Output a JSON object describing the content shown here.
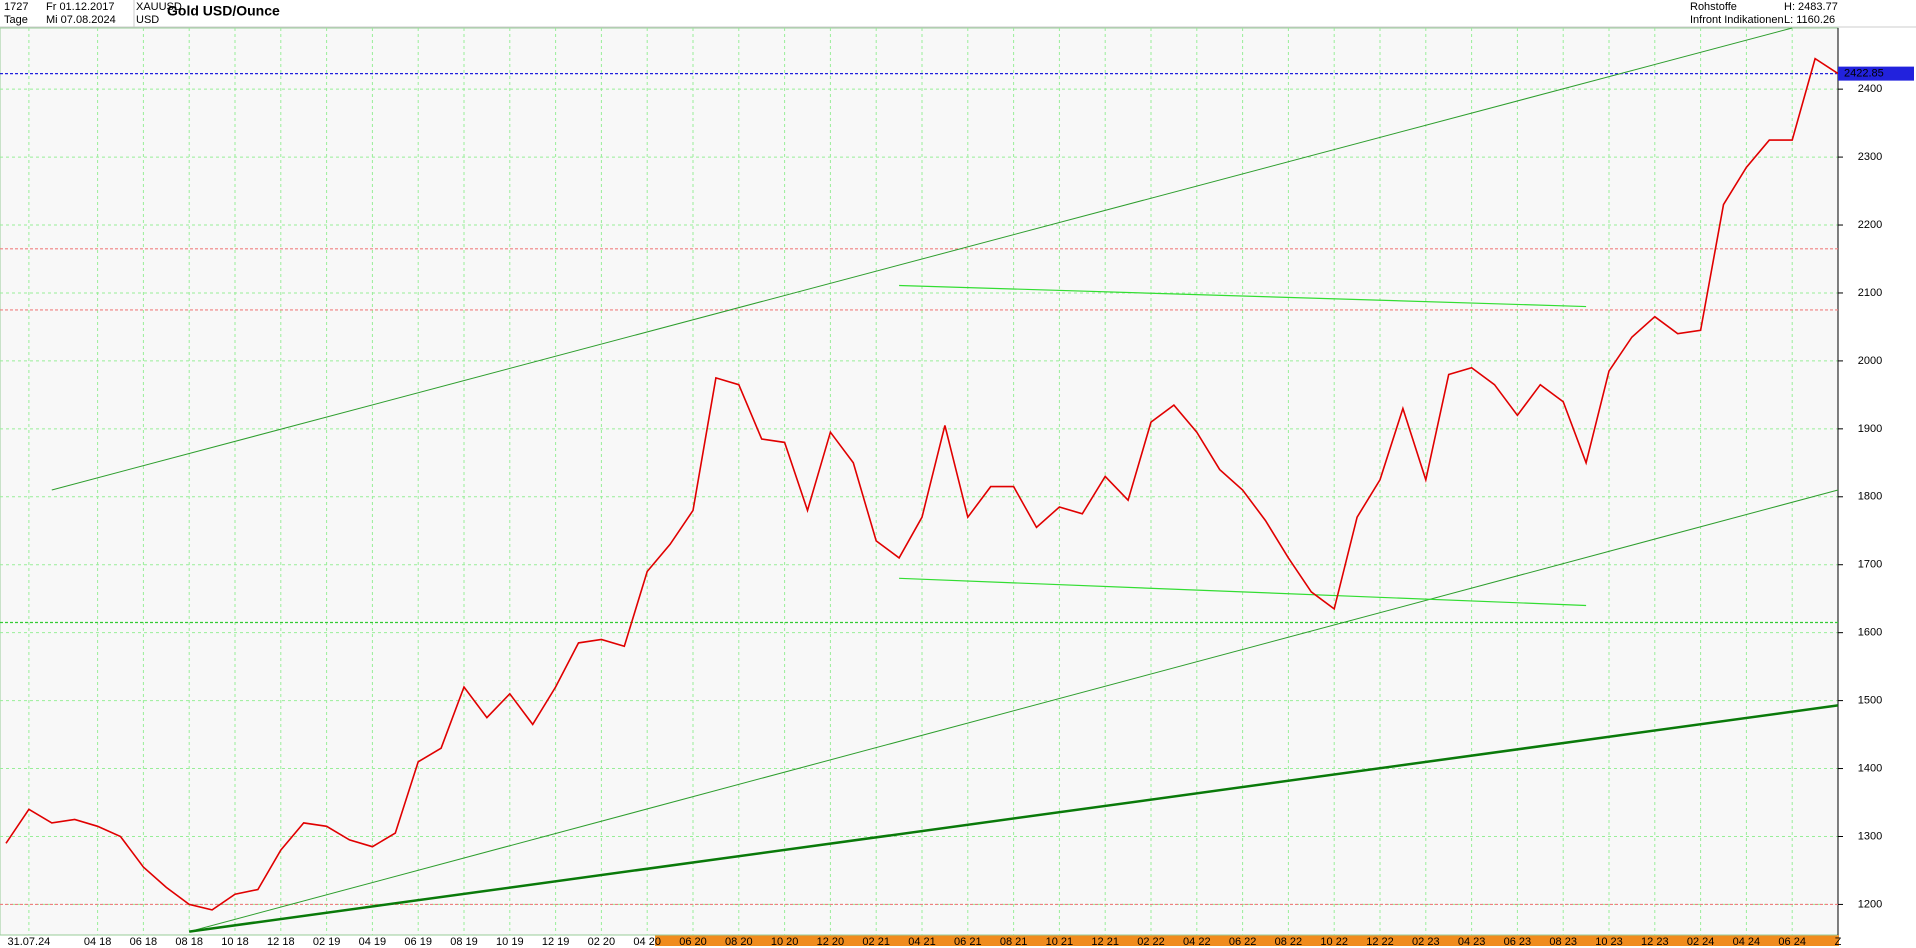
{
  "chart_data": {
    "type": "line",
    "title": "Gold USD/Ounce",
    "count": "1727",
    "period": "Tage",
    "date_from": "Fr 01.12.2017",
    "date_to": "Mi 07.08.2024",
    "symbol": "XAUUSD",
    "currency": "USD",
    "category": "Rohstoffe",
    "source": "Infront Indikationen",
    "high_label": "H: 2483.77",
    "low_label": "L: 1160.26",
    "last_price": 2422.85,
    "x": [
      "2017-12",
      "2018-01",
      "2018-02",
      "2018-03",
      "2018-04",
      "2018-05",
      "2018-06",
      "2018-07",
      "2018-08",
      "2018-09",
      "2018-10",
      "2018-11",
      "2018-12",
      "2019-01",
      "2019-02",
      "2019-03",
      "2019-04",
      "2019-05",
      "2019-06",
      "2019-07",
      "2019-08",
      "2019-09",
      "2019-10",
      "2019-11",
      "2019-12",
      "2020-01",
      "2020-02",
      "2020-03",
      "2020-04",
      "2020-05",
      "2020-06",
      "2020-07",
      "2020-08",
      "2020-09",
      "2020-10",
      "2020-11",
      "2020-12",
      "2021-01",
      "2021-02",
      "2021-03",
      "2021-04",
      "2021-05",
      "2021-06",
      "2021-07",
      "2021-08",
      "2021-09",
      "2021-10",
      "2021-11",
      "2021-12",
      "2022-01",
      "2022-02",
      "2022-03",
      "2022-04",
      "2022-05",
      "2022-06",
      "2022-07",
      "2022-08",
      "2022-09",
      "2022-10",
      "2022-11",
      "2022-12",
      "2023-01",
      "2023-02",
      "2023-03",
      "2023-04",
      "2023-05",
      "2023-06",
      "2023-07",
      "2023-08",
      "2023-09",
      "2023-10",
      "2023-11",
      "2023-12",
      "2024-01",
      "2024-02",
      "2024-03",
      "2024-04",
      "2024-05",
      "2024-06",
      "2024-07",
      "2024-08"
    ],
    "series": [
      {
        "color": "#e00000",
        "values": [
          1290,
          1340,
          1320,
          1325,
          1315,
          1300,
          1255,
          1225,
          1200,
          1192,
          1215,
          1222,
          1280,
          1320,
          1315,
          1295,
          1285,
          1305,
          1410,
          1430,
          1520,
          1475,
          1510,
          1465,
          1520,
          1585,
          1590,
          1580,
          1690,
          1730,
          1780,
          1975,
          1965,
          1885,
          1880,
          1780,
          1895,
          1850,
          1735,
          1710,
          1770,
          1905,
          1770,
          1815,
          1815,
          1755,
          1785,
          1775,
          1830,
          1795,
          1910,
          1935,
          1895,
          1840,
          1810,
          1765,
          1710,
          1660,
          1635,
          1770,
          1825,
          1930,
          1825,
          1980,
          1990,
          1965,
          1920,
          1965,
          1940,
          1850,
          1985,
          2035,
          2065,
          2040,
          2045,
          2230,
          2285,
          2325,
          2325,
          2445,
          2422.85
        ]
      }
    ],
    "ylim": [
      1155,
      2490
    ],
    "yticks": [
      1200,
      1300,
      1400,
      1500,
      1600,
      1700,
      1800,
      1900,
      2000,
      2100,
      2200,
      2300,
      2400
    ],
    "xticks": [
      {
        "value": "2018-01",
        "label": "31.07.24"
      },
      {
        "value": "2018-04",
        "label": "04 18"
      },
      {
        "value": "2018-06",
        "label": "06 18"
      },
      {
        "value": "2018-08",
        "label": "08 18"
      },
      {
        "value": "2018-10",
        "label": "10 18"
      },
      {
        "value": "2018-12",
        "label": "12 18"
      },
      {
        "value": "2019-02",
        "label": "02 19"
      },
      {
        "value": "2019-04",
        "label": "04 19"
      },
      {
        "value": "2019-06",
        "label": "06 19"
      },
      {
        "value": "2019-08",
        "label": "08 19"
      },
      {
        "value": "2019-10",
        "label": "10 19"
      },
      {
        "value": "2019-12",
        "label": "12 19"
      },
      {
        "value": "2020-02",
        "label": "02 20"
      },
      {
        "value": "2020-04",
        "label": "04 20"
      },
      {
        "value": "2020-06",
        "label": "06 20"
      },
      {
        "value": "2020-08",
        "label": "08 20"
      },
      {
        "value": "2020-10",
        "label": "10 20"
      },
      {
        "value": "2020-12",
        "label": "12 20"
      },
      {
        "value": "2021-02",
        "label": "02 21"
      },
      {
        "value": "2021-04",
        "label": "04 21"
      },
      {
        "value": "2021-06",
        "label": "06 21"
      },
      {
        "value": "2021-08",
        "label": "08 21"
      },
      {
        "value": "2021-10",
        "label": "10 21"
      },
      {
        "value": "2021-12",
        "label": "12 21"
      },
      {
        "value": "2022-02",
        "label": "02 22"
      },
      {
        "value": "2022-04",
        "label": "04 22"
      },
      {
        "value": "2022-06",
        "label": "06 22"
      },
      {
        "value": "2022-08",
        "label": "08 22"
      },
      {
        "value": "2022-10",
        "label": "10 22"
      },
      {
        "value": "2022-12",
        "label": "12 22"
      },
      {
        "value": "2023-02",
        "label": "02 23"
      },
      {
        "value": "2023-04",
        "label": "04 23"
      },
      {
        "value": "2023-06",
        "label": "06 23"
      },
      {
        "value": "2023-08",
        "label": "08 23"
      },
      {
        "value": "2023-10",
        "label": "10 23"
      },
      {
        "value": "2023-12",
        "label": "12 23"
      },
      {
        "value": "2024-02",
        "label": "02 24"
      },
      {
        "value": "2024-04",
        "label": "04 24"
      },
      {
        "value": "2024-06",
        "label": "06 24"
      },
      {
        "value": "2024-08",
        "label": "Z"
      }
    ],
    "grid": true,
    "trendlines": [
      {
        "x": [
          "2018-02",
          "2024-06"
        ],
        "values": [
          1810,
          2490
        ],
        "color": "#2e9e2e",
        "width": 1
      },
      {
        "x": [
          "2018-08",
          "2024-08"
        ],
        "values": [
          1160,
          1810
        ],
        "color": "#2e9e2e",
        "width": 1
      },
      {
        "x": [
          "2018-08",
          "2024-08"
        ],
        "values": [
          1160,
          1493
        ],
        "color": "#0a7a0a",
        "width": 2.5
      },
      {
        "x": [
          "2021-03",
          "2023-09"
        ],
        "values": [
          2111,
          2080
        ],
        "color": "#33dd33",
        "width": 1.2
      },
      {
        "x": [
          "2021-03",
          "2023-09"
        ],
        "values": [
          1680,
          1640
        ],
        "color": "#33dd33",
        "width": 1.2
      }
    ],
    "hlines": [
      {
        "value": 2165,
        "color": "#f08080"
      },
      {
        "value": 2075,
        "color": "#f08080"
      },
      {
        "value": 1200,
        "color": "#f08080"
      },
      {
        "value": 1615,
        "color": "#33cc33"
      },
      {
        "value": 2422.85,
        "color": "#2222dd"
      }
    ]
  }
}
